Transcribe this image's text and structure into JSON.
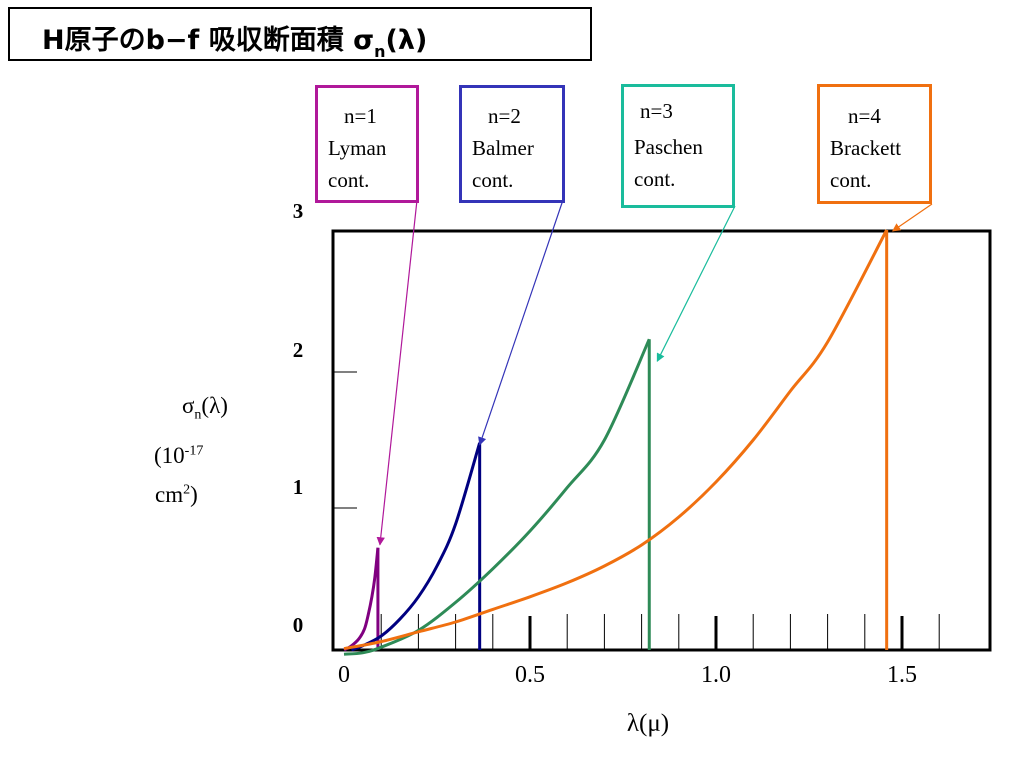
{
  "title": {
    "main": "H原子のb−f 吸収断面積 σ",
    "sub": "n",
    "tail": "(λ)"
  },
  "chart_data": {
    "type": "line",
    "xlabel": "λ(μ)",
    "ylabel": {
      "symbol": "σ",
      "sub": "n",
      "arg": "(λ)",
      "unit_line1": "(10",
      "unit_exp": "-17",
      "unit_line2": "cm",
      "unit_exp2": "2",
      "unit_close": ")"
    },
    "xlim": [
      0,
      1.8
    ],
    "ylim": [
      0,
      3
    ],
    "x_ticks": [
      "0",
      "0.5",
      "1.0",
      "1.5"
    ],
    "y_ticks": [
      "0",
      "1",
      "2",
      "3"
    ],
    "series": [
      {
        "name": "Lyman cont.",
        "label_lines": [
          "n=1",
          "Lyman",
          "cont."
        ],
        "color": "#800080",
        "box_color": "#b0189a",
        "edge": 0.0912,
        "peak": 0.73,
        "points": [
          [
            0,
            0
          ],
          [
            0.02,
            0.03
          ],
          [
            0.04,
            0.08
          ],
          [
            0.055,
            0.15
          ],
          [
            0.065,
            0.25
          ],
          [
            0.075,
            0.38
          ],
          [
            0.083,
            0.52
          ],
          [
            0.0912,
            0.73
          ]
        ]
      },
      {
        "name": "Balmer cont.",
        "label_lines": [
          "n=2",
          "Balmer",
          "cont."
        ],
        "color": "#000080",
        "box_color": "#3434b8",
        "edge": 0.3647,
        "peak": 1.48,
        "points": [
          [
            0.02,
            0
          ],
          [
            0.05,
            0.03
          ],
          [
            0.1,
            0.1
          ],
          [
            0.15,
            0.22
          ],
          [
            0.2,
            0.38
          ],
          [
            0.25,
            0.6
          ],
          [
            0.3,
            0.9
          ],
          [
            0.3647,
            1.48
          ]
        ]
      },
      {
        "name": "Paschen cont.",
        "label_lines": [
          "n=3",
          "Paschen",
          "cont."
        ],
        "color": "#2e8b57",
        "box_color": "#1abc9c",
        "edge": 0.8206,
        "peak": 2.22,
        "points": [
          [
            0,
            -0.03
          ],
          [
            0.05,
            -0.02
          ],
          [
            0.1,
            0.02
          ],
          [
            0.2,
            0.14
          ],
          [
            0.3,
            0.34
          ],
          [
            0.4,
            0.58
          ],
          [
            0.5,
            0.85
          ],
          [
            0.6,
            1.16
          ],
          [
            0.7,
            1.5
          ],
          [
            0.8206,
            2.22
          ]
        ]
      },
      {
        "name": "Brackett cont.",
        "label_lines": [
          "n=4",
          "Brackett",
          "cont."
        ],
        "color": "#f07010",
        "box_color": "#f07010",
        "edge": 1.4588,
        "peak": 3.0,
        "points": [
          [
            0,
            0.01
          ],
          [
            0.1,
            0.06
          ],
          [
            0.2,
            0.13
          ],
          [
            0.3,
            0.2
          ],
          [
            0.4,
            0.29
          ],
          [
            0.5,
            0.38
          ],
          [
            0.6,
            0.48
          ],
          [
            0.7,
            0.6
          ],
          [
            0.8,
            0.75
          ],
          [
            0.9,
            0.95
          ],
          [
            1.0,
            1.2
          ],
          [
            1.1,
            1.5
          ],
          [
            1.2,
            1.85
          ],
          [
            1.3,
            2.2
          ],
          [
            1.4588,
            3.0
          ]
        ]
      }
    ]
  }
}
